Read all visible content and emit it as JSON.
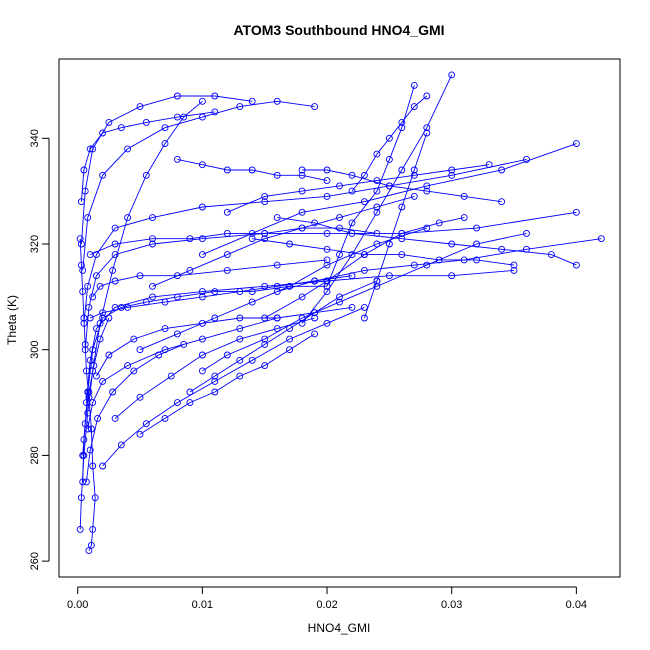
{
  "chart_data": {
    "type": "line",
    "title": "ATOM3 Southbound HNO4_GMI",
    "xlabel": "HNO4_GMI",
    "ylabel": "Theta (K)",
    "xlim": [
      -0.0015,
      0.0435
    ],
    "ylim": [
      257,
      355
    ],
    "xticks": [
      "0.00",
      "0.01",
      "0.02",
      "0.03",
      "0.04"
    ],
    "yticks": [
      "260",
      "280",
      "300",
      "320",
      "340"
    ],
    "grid": false,
    "legend": "none",
    "marker": "open-circle",
    "colors": {
      "series": "#0000ff",
      "axis": "#000000"
    },
    "series": [
      {
        "x": [
          0.0009,
          0.0011,
          0.0012,
          0.0014,
          0.0012,
          0.0011,
          0.0009,
          0.0007,
          0.0006,
          0.0005,
          0.0004,
          0.0003,
          0.0002
        ],
        "y": [
          262,
          263,
          266,
          272,
          278,
          285,
          291,
          296,
          301,
          306,
          311,
          316,
          321
        ]
      },
      {
        "x": [
          0.0002,
          0.0003,
          0.0005,
          0.0008,
          0.0012,
          0.0018,
          0.0028,
          0.004,
          0.0055,
          0.007,
          0.0085,
          0.01
        ],
        "y": [
          266,
          272,
          280,
          288,
          296,
          305,
          315,
          325,
          333,
          339,
          344,
          347
        ]
      },
      {
        "x": [
          0.0004,
          0.0005,
          0.0008,
          0.0012,
          0.002,
          0.0035,
          0.0055,
          0.008,
          0.011,
          0.014,
          0.017,
          0.02
        ],
        "y": [
          275,
          283,
          292,
          300,
          306,
          308,
          309,
          310,
          311,
          311,
          312,
          312
        ]
      },
      {
        "x": [
          0.0007,
          0.001,
          0.0015,
          0.003,
          0.006,
          0.01,
          0.015,
          0.02,
          0.025,
          0.03,
          0.035
        ],
        "y": [
          290,
          298,
          304,
          308,
          310,
          311,
          312,
          313,
          314,
          314,
          315
        ]
      },
      {
        "x": [
          0.0006,
          0.0009,
          0.0015,
          0.003,
          0.006,
          0.01,
          0.015,
          0.02,
          0.026,
          0.032,
          0.04
        ],
        "y": [
          300,
          308,
          314,
          318,
          320,
          321,
          322,
          322,
          322,
          323,
          326
        ]
      },
      {
        "x": [
          0.0005,
          0.0008,
          0.0015,
          0.003,
          0.006,
          0.01,
          0.015,
          0.02,
          0.025,
          0.03,
          0.036
        ],
        "y": [
          305,
          312,
          318,
          323,
          325,
          327,
          328,
          329,
          331,
          333,
          336
        ]
      },
      {
        "x": [
          0.0004,
          0.0008,
          0.002,
          0.004,
          0.007,
          0.01,
          0.013,
          0.016,
          0.019
        ],
        "y": [
          315,
          325,
          333,
          338,
          342,
          344,
          346,
          347,
          346
        ]
      },
      {
        "x": [
          0.0003,
          0.0006,
          0.0012,
          0.0025,
          0.005,
          0.008,
          0.011,
          0.014
        ],
        "y": [
          320,
          330,
          338,
          343,
          346,
          348,
          348,
          347
        ]
      },
      {
        "x": [
          0.0008,
          0.0012,
          0.002,
          0.004,
          0.007,
          0.01,
          0.013,
          0.016,
          0.019,
          0.022
        ],
        "y": [
          285,
          290,
          294,
          297,
          300,
          302,
          304,
          306,
          307,
          308
        ]
      },
      {
        "x": [
          0.002,
          0.0035,
          0.0055,
          0.008,
          0.011,
          0.014,
          0.017,
          0.02,
          0.023
        ],
        "y": [
          278,
          282,
          286,
          290,
          294,
          298,
          302,
          305,
          308
        ]
      },
      {
        "x": [
          0.003,
          0.005,
          0.0075,
          0.01,
          0.013,
          0.016,
          0.019
        ],
        "y": [
          287,
          291,
          295,
          299,
          302,
          304,
          306
        ]
      },
      {
        "x": [
          0.015,
          0.018,
          0.02,
          0.023,
          0.026,
          0.029,
          0.031
        ],
        "y": [
          306,
          310,
          313,
          318,
          322,
          324,
          325
        ]
      },
      {
        "x": [
          0.02,
          0.021,
          0.022,
          0.024,
          0.025,
          0.026,
          0.027
        ],
        "y": [
          312,
          318,
          324,
          330,
          336,
          342,
          350
        ]
      },
      {
        "x": [
          0.018,
          0.02,
          0.022,
          0.024,
          0.026,
          0.028,
          0.03
        ],
        "y": [
          305,
          311,
          318,
          326,
          334,
          342,
          352
        ]
      },
      {
        "x": [
          0.016,
          0.019,
          0.023,
          0.027,
          0.031,
          0.036,
          0.042
        ],
        "y": [
          311,
          313,
          315,
          316,
          317,
          319,
          321
        ]
      },
      {
        "x": [
          0.01,
          0.014,
          0.018,
          0.023,
          0.028,
          0.034,
          0.04
        ],
        "y": [
          318,
          322,
          326,
          328,
          331,
          334,
          339
        ]
      },
      {
        "x": [
          0.016,
          0.019,
          0.022,
          0.026,
          0.03,
          0.034,
          0.038,
          0.04
        ],
        "y": [
          325,
          324,
          322,
          321,
          320,
          319,
          318,
          316
        ]
      },
      {
        "x": [
          0.005,
          0.008,
          0.011,
          0.014,
          0.017,
          0.02,
          0.024,
          0.028
        ],
        "y": [
          300,
          303,
          306,
          309,
          312,
          316,
          320,
          323
        ]
      },
      {
        "x": [
          0.001,
          0.003,
          0.006,
          0.009,
          0.012,
          0.015,
          0.018,
          0.021,
          0.024
        ],
        "y": [
          318,
          320,
          321,
          321,
          322,
          322,
          323,
          323,
          322
        ]
      },
      {
        "x": [
          0.0012,
          0.0018,
          0.003,
          0.005,
          0.008,
          0.012,
          0.016,
          0.02
        ],
        "y": [
          310,
          312,
          313,
          314,
          314,
          315,
          316,
          317
        ]
      },
      {
        "x": [
          0.0015,
          0.0025,
          0.0045,
          0.007,
          0.01,
          0.013,
          0.016
        ],
        "y": [
          295,
          299,
          302,
          304,
          305,
          306,
          306
        ]
      },
      {
        "x": [
          0.009,
          0.011,
          0.013,
          0.015,
          0.017,
          0.019,
          0.021,
          0.024
        ],
        "y": [
          292,
          295,
          298,
          301,
          304,
          307,
          310,
          313
        ]
      },
      {
        "x": [
          0.012,
          0.015,
          0.018,
          0.021,
          0.024,
          0.027,
          0.03,
          0.033
        ],
        "y": [
          326,
          329,
          330,
          331,
          332,
          333,
          334,
          335
        ]
      },
      {
        "x": [
          0.022,
          0.023,
          0.024,
          0.025,
          0.026,
          0.027,
          0.028
        ],
        "y": [
          330,
          333,
          337,
          340,
          343,
          346,
          348
        ]
      },
      {
        "x": [
          0.0004,
          0.0006,
          0.0009,
          0.0013,
          0.0018,
          0.0025
        ],
        "y": [
          280,
          286,
          292,
          297,
          302,
          306
        ]
      },
      {
        "x": [
          0.0007,
          0.001,
          0.0016,
          0.0028,
          0.0045,
          0.0065,
          0.0085
        ],
        "y": [
          275,
          281,
          287,
          292,
          296,
          299,
          301
        ]
      },
      {
        "x": [
          0.014,
          0.017,
          0.02,
          0.023,
          0.026,
          0.029,
          0.032,
          0.035
        ],
        "y": [
          321,
          320,
          319,
          318,
          318,
          317,
          317,
          316
        ]
      },
      {
        "x": [
          0.006,
          0.009,
          0.012,
          0.015,
          0.018,
          0.021,
          0.024,
          0.027
        ],
        "y": [
          312,
          315,
          318,
          321,
          323,
          325,
          327,
          329
        ]
      },
      {
        "x": [
          0.01,
          0.012,
          0.015,
          0.018,
          0.021,
          0.024,
          0.028,
          0.032,
          0.036
        ],
        "y": [
          296,
          299,
          302,
          306,
          309,
          312,
          316,
          320,
          322
        ]
      },
      {
        "x": [
          0.0003,
          0.0005,
          0.001,
          0.002,
          0.0035,
          0.0055,
          0.008,
          0.011
        ],
        "y": [
          328,
          334,
          338,
          341,
          342,
          343,
          344,
          345
        ]
      },
      {
        "x": [
          0.018,
          0.02,
          0.022,
          0.025,
          0.028,
          0.031,
          0.034
        ],
        "y": [
          334,
          334,
          333,
          331,
          330,
          329,
          328
        ]
      },
      {
        "x": [
          0.023,
          0.024,
          0.025,
          0.026,
          0.027,
          0.028
        ],
        "y": [
          306,
          313,
          320,
          327,
          334,
          341
        ]
      },
      {
        "x": [
          0.008,
          0.01,
          0.012,
          0.014,
          0.016,
          0.018,
          0.02
        ],
        "y": [
          336,
          335,
          334,
          334,
          333,
          333,
          332
        ]
      },
      {
        "x": [
          0.005,
          0.007,
          0.009,
          0.011,
          0.013,
          0.015,
          0.017,
          0.019
        ],
        "y": [
          284,
          287,
          290,
          292,
          295,
          297,
          300,
          303
        ]
      },
      {
        "x": [
          0.001,
          0.002,
          0.004,
          0.007,
          0.01,
          0.013,
          0.016,
          0.019,
          0.022
        ],
        "y": [
          306,
          307,
          308,
          309,
          310,
          311,
          312,
          313,
          314
        ]
      }
    ]
  }
}
